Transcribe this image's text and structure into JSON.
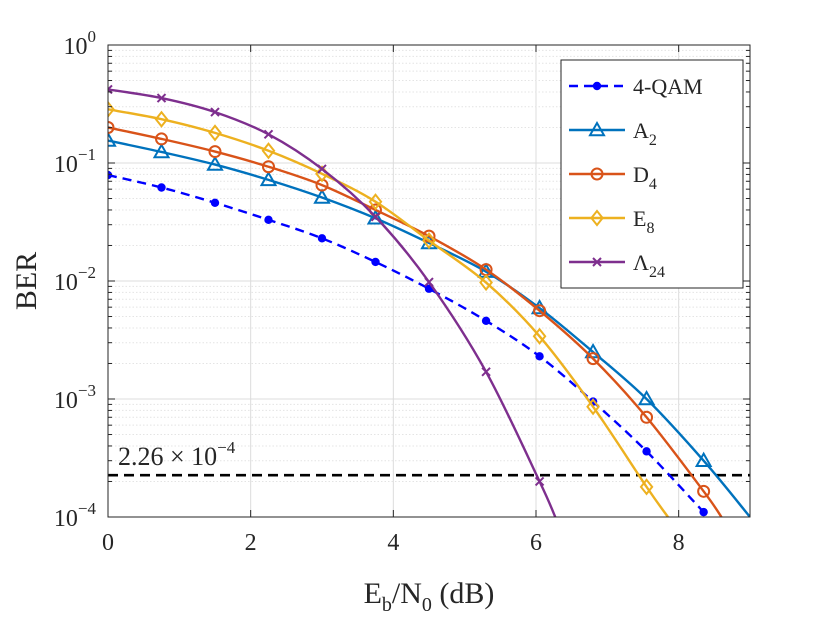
{
  "chart_data": {
    "type": "line",
    "yscale": "log",
    "xlabel": {
      "main": "E",
      "sub1": "b",
      "mid": "/N",
      "sub2": "0",
      "tail": " (dB)"
    },
    "ylabel": "BER",
    "xlim": [
      0,
      9
    ],
    "ylim": [
      0.0001,
      1
    ],
    "xticks": [
      0,
      2,
      4,
      6,
      8
    ],
    "xtick_labels": [
      "0",
      "2",
      "4",
      "6",
      "8"
    ],
    "yticks": [
      {
        "value": 1,
        "base": "10",
        "exp": "0"
      },
      {
        "value": 0.1,
        "base": "10",
        "exp": "-1"
      },
      {
        "value": 0.01,
        "base": "10",
        "exp": "-2"
      },
      {
        "value": 0.001,
        "base": "10",
        "exp": "-3"
      },
      {
        "value": 0.0001,
        "base": "10",
        "exp": "-4"
      }
    ],
    "grid": true,
    "legend_position": "top-right",
    "series": [
      {
        "name": "4-QAM",
        "legend_main": "4-QAM",
        "legend_sub": "",
        "color": "#0000ff",
        "dash": "dashed",
        "marker": "dot",
        "x": [
          0,
          0.75,
          1.5,
          2.25,
          3.0,
          3.75,
          4.5,
          5.3,
          6.05,
          6.8,
          7.55,
          8.35
        ],
        "y": [
          0.079,
          0.062,
          0.046,
          0.033,
          0.023,
          0.0145,
          0.0086,
          0.0046,
          0.0023,
          0.00095,
          0.00036,
          0.00011
        ]
      },
      {
        "name": "A2",
        "legend_main": "A",
        "legend_sub": "2",
        "color": "#0072bd",
        "dash": "solid",
        "marker": "triangle",
        "x": [
          0,
          0.75,
          1.5,
          2.25,
          3.0,
          3.75,
          4.5,
          5.3,
          6.05,
          6.8,
          7.55,
          8.35,
          9.0
        ],
        "y": [
          0.155,
          0.124,
          0.097,
          0.072,
          0.051,
          0.034,
          0.021,
          0.012,
          0.0059,
          0.0025,
          0.001,
          0.0003,
          0.0001
        ]
      },
      {
        "name": "D4",
        "legend_main": "D",
        "legend_sub": "4",
        "color": "#d95319",
        "dash": "solid",
        "marker": "circle",
        "x": [
          0,
          0.75,
          1.5,
          2.25,
          3.0,
          3.75,
          4.5,
          5.3,
          6.05,
          6.8,
          7.55,
          8.35,
          8.6
        ],
        "y": [
          0.2,
          0.16,
          0.125,
          0.093,
          0.065,
          0.04,
          0.024,
          0.0125,
          0.0056,
          0.0022,
          0.0007,
          0.000165,
          0.0001
        ]
      },
      {
        "name": "E8",
        "legend_main": "E",
        "legend_sub": "8",
        "color": "#edb120",
        "dash": "solid",
        "marker": "diamond",
        "x": [
          0,
          0.75,
          1.5,
          2.25,
          3.0,
          3.75,
          4.5,
          5.3,
          6.05,
          6.8,
          7.55,
          7.85
        ],
        "y": [
          0.285,
          0.235,
          0.18,
          0.127,
          0.081,
          0.047,
          0.022,
          0.0097,
          0.0034,
          0.00086,
          0.00018,
          0.0001
        ]
      },
      {
        "name": "Λ24",
        "legend_main": "Λ",
        "legend_sub": "24",
        "color": "#7e2f8e",
        "dash": "solid",
        "marker": "x",
        "x": [
          0,
          0.75,
          1.5,
          2.25,
          3.0,
          3.75,
          4.5,
          5.3,
          6.05,
          6.27
        ],
        "y": [
          0.42,
          0.355,
          0.27,
          0.175,
          0.089,
          0.035,
          0.0098,
          0.0017,
          0.0002,
          0.0001
        ]
      }
    ],
    "reference_line": {
      "y": 0.000226,
      "color": "#000000",
      "dash": "dashed",
      "label_base": "2.26 × 10",
      "label_exp": "−4"
    }
  }
}
